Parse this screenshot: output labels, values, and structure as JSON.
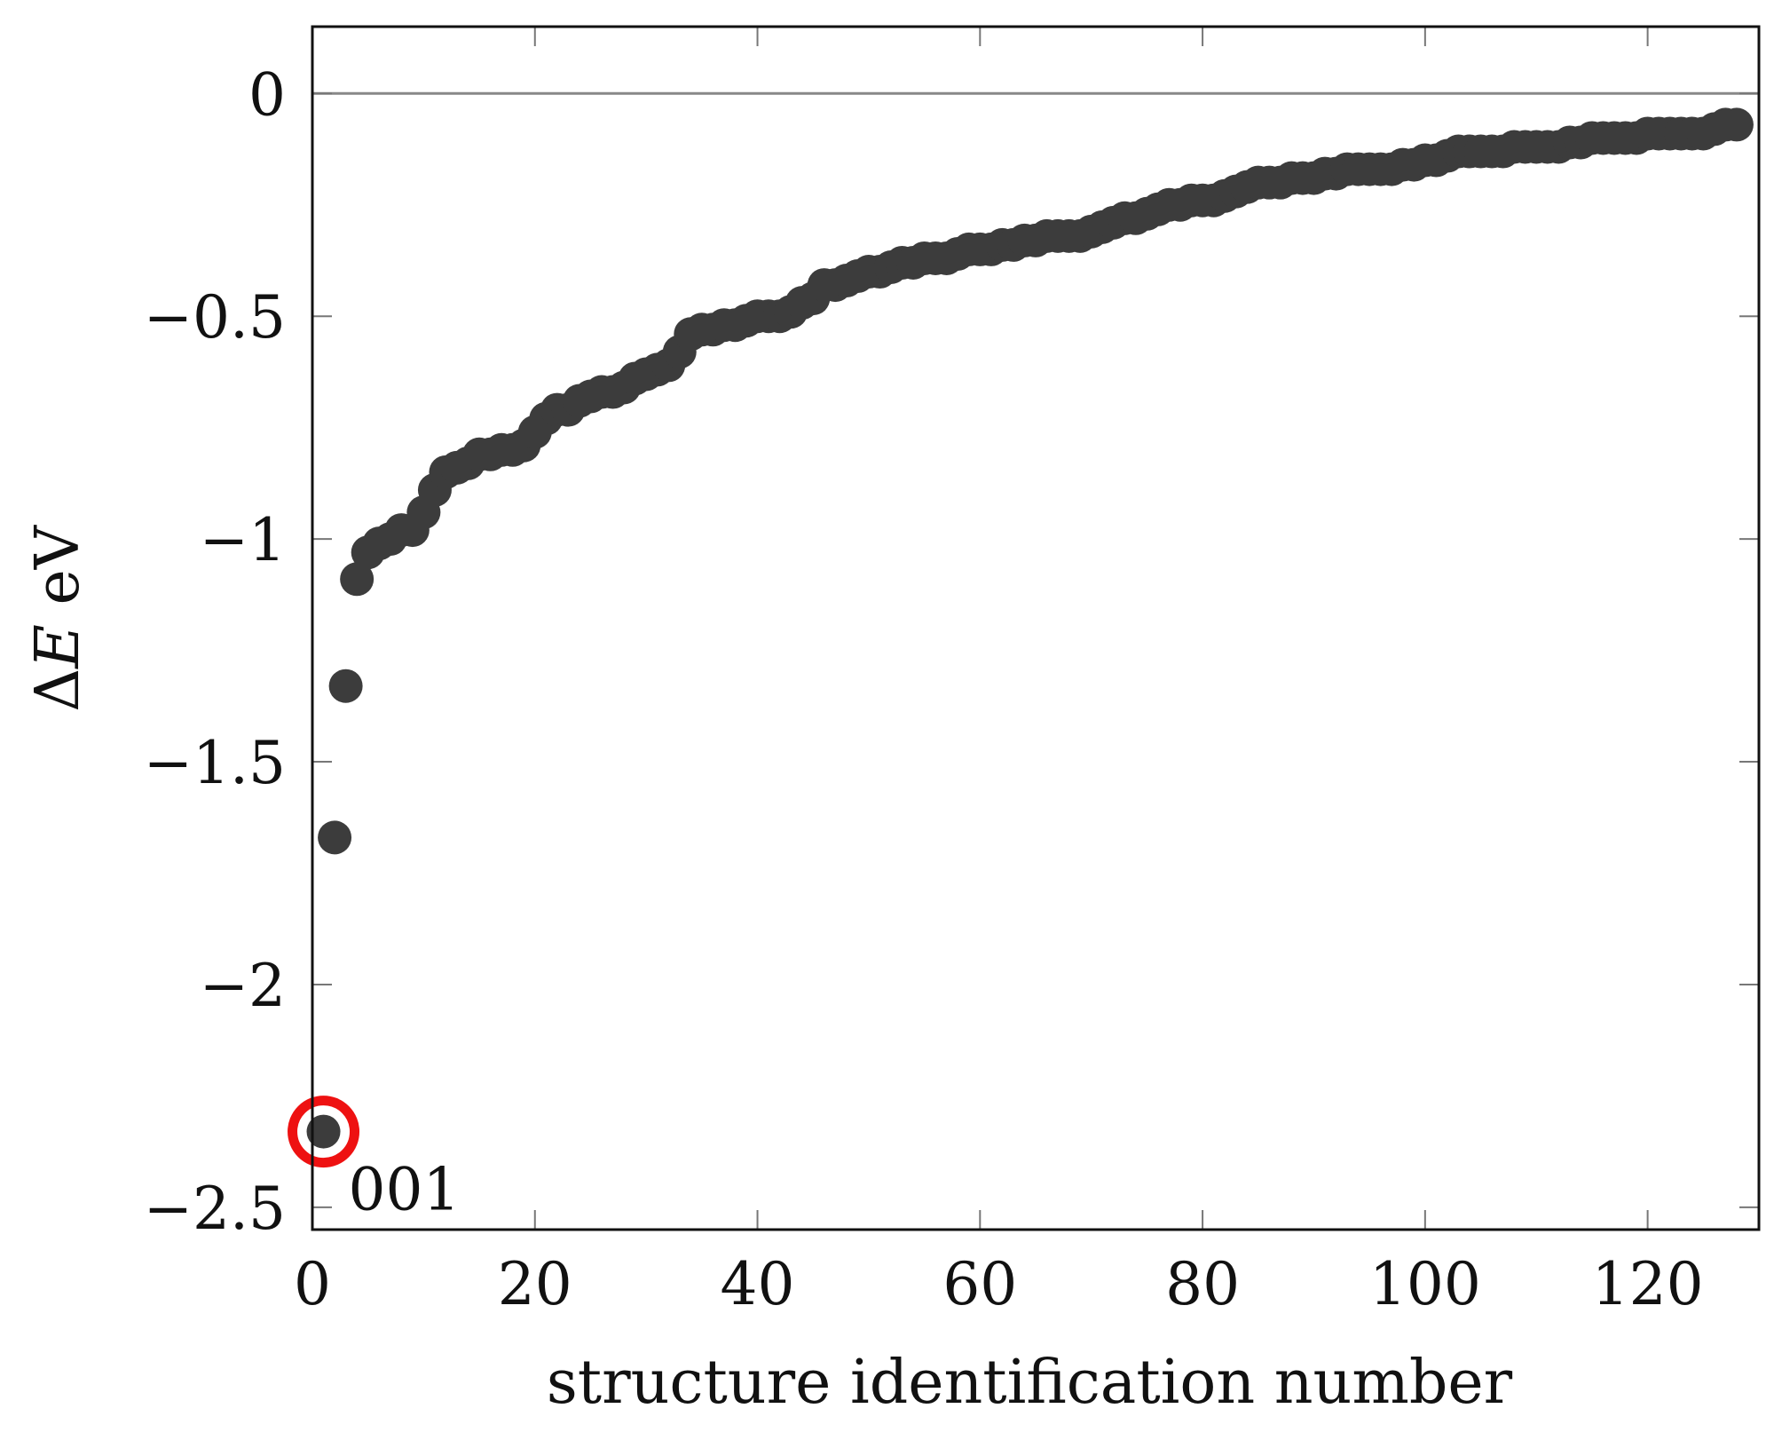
{
  "chart_data": {
    "type": "scatter",
    "title": "",
    "xlabel": "structure identification number",
    "ylabel_prefix": "Δ",
    "ylabel_var": "E",
    "ylabel_suffix": " eV",
    "xlim": [
      0,
      130
    ],
    "ylim": [
      -2.55,
      0.15
    ],
    "xticks": [
      0,
      20,
      40,
      60,
      80,
      100,
      120
    ],
    "xtick_labels": [
      "0",
      "20",
      "40",
      "60",
      "80",
      "100",
      "120"
    ],
    "yticks": [
      0,
      -0.5,
      -1,
      -1.5,
      -2,
      -2.5
    ],
    "ytick_labels": [
      "0",
      "−0.5",
      "−1",
      "−1.5",
      "−2",
      "−2.5"
    ],
    "reference_line_y": 0,
    "grid": false,
    "marker_color": "#3c3c3c",
    "highlight_color": "#ee1111",
    "reference_line_color": "#888888",
    "highlight": {
      "x": 1,
      "y": -2.33,
      "label": "001"
    },
    "series": [
      {
        "x": [
          1,
          2,
          3,
          4,
          5,
          6,
          7,
          8,
          9,
          10,
          11,
          12,
          13,
          14,
          15,
          16,
          17,
          18,
          19,
          20,
          21,
          22,
          23,
          24,
          25,
          26,
          27,
          28,
          29,
          30,
          31,
          32,
          33,
          34,
          35,
          36,
          37,
          38,
          39,
          40,
          41,
          42,
          43,
          44,
          45,
          46,
          47,
          48,
          49,
          50,
          51,
          52,
          53,
          54,
          55,
          56,
          57,
          58,
          59,
          60,
          61,
          62,
          63,
          64,
          65,
          66,
          67,
          68,
          69,
          70,
          71,
          72,
          73,
          74,
          75,
          76,
          77,
          78,
          79,
          80,
          81,
          82,
          83,
          84,
          85,
          86,
          87,
          88,
          89,
          90,
          91,
          92,
          93,
          94,
          95,
          96,
          97,
          98,
          99,
          100,
          101,
          102,
          103,
          104,
          105,
          106,
          107,
          108,
          109,
          110,
          111,
          112,
          113,
          114,
          115,
          116,
          117,
          118,
          119,
          120,
          121,
          122,
          123,
          124,
          125,
          126,
          127,
          128
        ],
        "y": [
          -2.33,
          -1.67,
          -1.33,
          -1.09,
          -1.03,
          -1.01,
          -1.0,
          -0.98,
          -0.98,
          -0.94,
          -0.89,
          -0.85,
          -0.84,
          -0.83,
          -0.81,
          -0.81,
          -0.8,
          -0.8,
          -0.79,
          -0.76,
          -0.73,
          -0.71,
          -0.71,
          -0.69,
          -0.68,
          -0.67,
          -0.67,
          -0.66,
          -0.64,
          -0.63,
          -0.62,
          -0.61,
          -0.58,
          -0.54,
          -0.53,
          -0.53,
          -0.52,
          -0.52,
          -0.51,
          -0.5,
          -0.5,
          -0.5,
          -0.49,
          -0.47,
          -0.46,
          -0.43,
          -0.43,
          -0.42,
          -0.41,
          -0.4,
          -0.4,
          -0.39,
          -0.38,
          -0.38,
          -0.37,
          -0.37,
          -0.37,
          -0.36,
          -0.35,
          -0.35,
          -0.35,
          -0.34,
          -0.34,
          -0.33,
          -0.33,
          -0.32,
          -0.32,
          -0.32,
          -0.32,
          -0.31,
          -0.3,
          -0.29,
          -0.28,
          -0.28,
          -0.27,
          -0.26,
          -0.25,
          -0.25,
          -0.24,
          -0.24,
          -0.24,
          -0.23,
          -0.22,
          -0.21,
          -0.2,
          -0.2,
          -0.2,
          -0.19,
          -0.19,
          -0.19,
          -0.18,
          -0.18,
          -0.17,
          -0.17,
          -0.17,
          -0.17,
          -0.17,
          -0.16,
          -0.16,
          -0.15,
          -0.15,
          -0.14,
          -0.13,
          -0.13,
          -0.13,
          -0.13,
          -0.13,
          -0.12,
          -0.12,
          -0.12,
          -0.12,
          -0.12,
          -0.11,
          -0.11,
          -0.1,
          -0.1,
          -0.1,
          -0.1,
          -0.1,
          -0.09,
          -0.09,
          -0.09,
          -0.09,
          -0.09,
          -0.09,
          -0.08,
          -0.07,
          -0.07
        ]
      }
    ]
  }
}
